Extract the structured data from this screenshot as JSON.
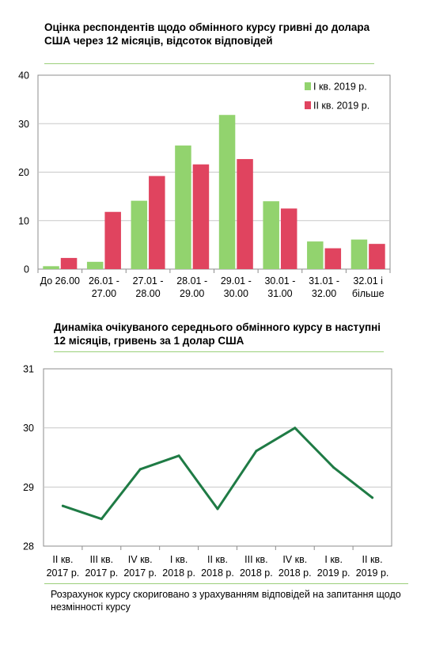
{
  "charts": {
    "bar": {
      "title": "Оцінка респондентів щодо обмінного курсу гривні до долара США через 12 місяців, відсоток відповідей"
    },
    "line": {
      "title": "Динаміка очікуваного середнього обмінного курсу в наступні 12 місяців, гривень за 1 долар США"
    }
  },
  "footnote": "Розрахунок курсу скориговано з урахуванням відповідей на запитання щодо незмінності курсу",
  "colors": {
    "green": "#92d36e",
    "red": "#e0445f",
    "line": "#1f7b45",
    "rule": "#9bcf7a"
  },
  "chart_data": [
    {
      "type": "bar",
      "title": "Оцінка респондентів щодо обмінного курсу гривні до долара США через 12 місяців, відсоток відповідей",
      "categories": [
        [
          "До 26.00"
        ],
        [
          "26.01 -",
          "27.00"
        ],
        [
          "27.01 -",
          "28.00"
        ],
        [
          "28.01 -",
          "29.00"
        ],
        [
          "29.01 -",
          "30.00"
        ],
        [
          "30.01 -",
          "31.00"
        ],
        [
          "31.01 -",
          "32.00"
        ],
        [
          "32.01 і",
          "більше"
        ]
      ],
      "series": [
        {
          "name": "І кв. 2019 р.",
          "color": "#92d36e",
          "values": [
            0.6,
            1.5,
            14.1,
            25.5,
            31.8,
            14.0,
            5.7,
            6.1
          ]
        },
        {
          "name": "ІІ кв. 2019 р.",
          "color": "#e0445f",
          "values": [
            2.3,
            11.8,
            19.2,
            21.6,
            22.7,
            12.5,
            4.3,
            5.2
          ]
        }
      ],
      "ylim": [
        0,
        40
      ],
      "yticks": [
        0,
        10,
        20,
        30,
        40
      ],
      "grid": true,
      "legend": "top-right"
    },
    {
      "type": "line",
      "title": "Динаміка очікуваного середнього обмінного курсу в наступні 12 місяців, гривень за 1 долар США",
      "categories": [
        [
          "II кв.",
          "2017 р."
        ],
        [
          "III кв.",
          "2017 р."
        ],
        [
          "IV кв.",
          "2017 р."
        ],
        [
          "I кв.",
          "2018 р."
        ],
        [
          "II кв.",
          "2018 р."
        ],
        [
          "III кв.",
          "2018 р."
        ],
        [
          "IV кв.",
          "2018 р."
        ],
        [
          "I кв.",
          "2019 р."
        ],
        [
          "II кв.",
          "2019 р."
        ]
      ],
      "values": [
        28.68,
        28.46,
        29.3,
        29.53,
        28.63,
        29.61,
        30.0,
        29.33,
        28.82
      ],
      "ylim": [
        28,
        31
      ],
      "yticks": [
        28,
        29,
        30,
        31
      ],
      "grid": true
    }
  ]
}
